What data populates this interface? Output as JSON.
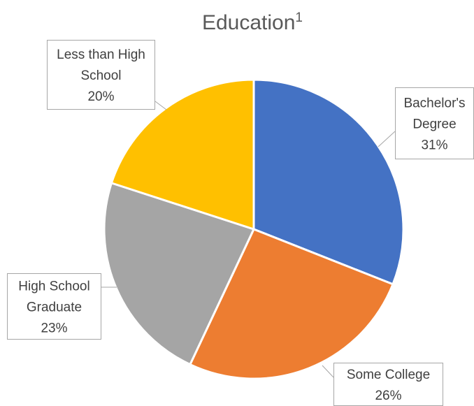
{
  "chart_data": {
    "type": "pie",
    "title": "Education",
    "title_superscript": "1",
    "slices": [
      {
        "label_lines": [
          "Bachelor's",
          "Degree"
        ],
        "value": 31,
        "value_label": "31%",
        "color": "#4472C4"
      },
      {
        "label_lines": [
          "Some College"
        ],
        "value": 26,
        "value_label": "26%",
        "color": "#ED7D31"
      },
      {
        "label_lines": [
          "High School",
          "Graduate"
        ],
        "value": 23,
        "value_label": "23%",
        "color": "#A5A5A5"
      },
      {
        "label_lines": [
          "Less than High",
          "School"
        ],
        "value": 20,
        "value_label": "20%",
        "color": "#FFC000"
      }
    ],
    "legend": "none",
    "data_labels": "callouts"
  }
}
